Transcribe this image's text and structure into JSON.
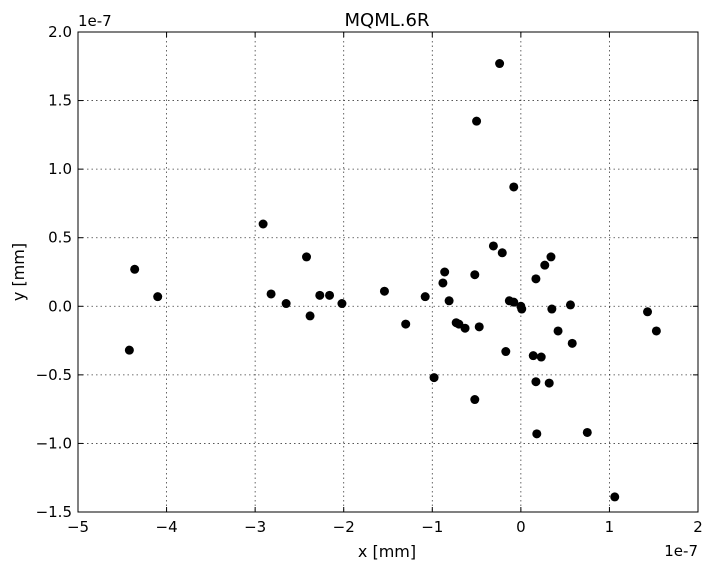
{
  "chart_data": {
    "type": "scatter",
    "title": "MQML.6R",
    "xlabel": "x [mm]",
    "ylabel": "y [mm]",
    "x_offset_text": "1e-7",
    "y_offset_text": "1e-7",
    "xlim": [
      -5,
      2
    ],
    "ylim": [
      -1.5,
      2.0
    ],
    "x_ticks": [
      -5,
      -4,
      -3,
      -2,
      -1,
      0,
      1,
      2
    ],
    "x_tick_labels": [
      "−5",
      "−4",
      "−3",
      "−2",
      "−1",
      "0",
      "1",
      "2"
    ],
    "y_ticks": [
      -1.5,
      -1.0,
      -0.5,
      0.0,
      0.5,
      1.0,
      1.5,
      2.0
    ],
    "y_tick_labels": [
      "−1.5",
      "−1.0",
      "−0.5",
      "0.0",
      "0.5",
      "1.0",
      "1.5",
      "2.0"
    ],
    "grid": true,
    "marker_color": "#000000",
    "points": [
      [
        -4.42,
        -0.32
      ],
      [
        -4.36,
        0.27
      ],
      [
        -4.1,
        0.07
      ],
      [
        -2.91,
        0.6
      ],
      [
        -2.82,
        0.09
      ],
      [
        -2.65,
        0.02
      ],
      [
        -2.42,
        0.36
      ],
      [
        -2.38,
        -0.07
      ],
      [
        -2.27,
        0.08
      ],
      [
        -2.16,
        0.08
      ],
      [
        -2.02,
        0.02
      ],
      [
        -1.54,
        0.11
      ],
      [
        -1.3,
        -0.13
      ],
      [
        -1.08,
        0.07
      ],
      [
        -0.98,
        -0.52
      ],
      [
        -0.88,
        0.17
      ],
      [
        -0.86,
        0.25
      ],
      [
        -0.81,
        0.04
      ],
      [
        -0.73,
        -0.12
      ],
      [
        -0.7,
        -0.13
      ],
      [
        -0.63,
        -0.16
      ],
      [
        -0.52,
        0.23
      ],
      [
        -0.52,
        -0.68
      ],
      [
        -0.47,
        -0.15
      ],
      [
        -0.5,
        1.35
      ],
      [
        -0.31,
        0.44
      ],
      [
        -0.24,
        1.77
      ],
      [
        -0.21,
        0.39
      ],
      [
        -0.17,
        -0.33
      ],
      [
        -0.13,
        0.04
      ],
      [
        -0.08,
        0.03
      ],
      [
        -0.08,
        0.87
      ],
      [
        0.0,
        0.0
      ],
      [
        0.01,
        -0.02
      ],
      [
        0.14,
        -0.36
      ],
      [
        0.17,
        0.2
      ],
      [
        0.17,
        -0.55
      ],
      [
        0.18,
        -0.93
      ],
      [
        0.23,
        -0.37
      ],
      [
        0.27,
        0.3
      ],
      [
        0.32,
        -0.56
      ],
      [
        0.34,
        0.36
      ],
      [
        0.35,
        -0.02
      ],
      [
        0.42,
        -0.18
      ],
      [
        0.56,
        0.01
      ],
      [
        0.58,
        -0.27
      ],
      [
        0.75,
        -0.92
      ],
      [
        1.06,
        -1.39
      ],
      [
        1.43,
        -0.04
      ],
      [
        1.53,
        -0.18
      ]
    ]
  }
}
